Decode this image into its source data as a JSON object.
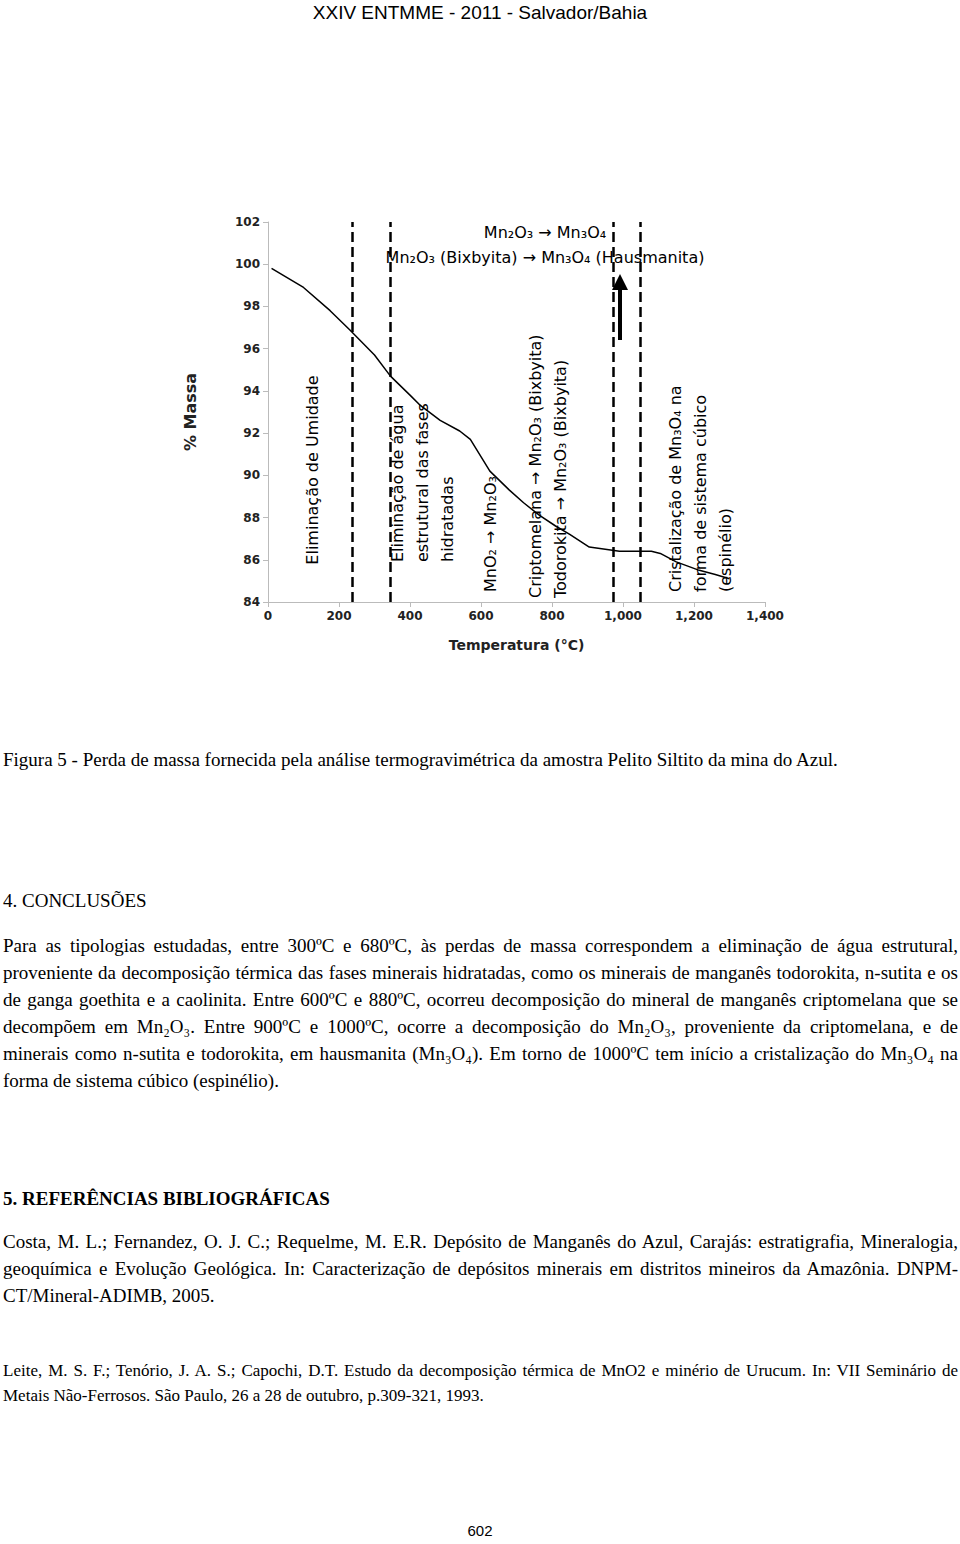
{
  "header": "XXIV ENTMME - 2011 - Salvador/Bahia",
  "chart_data": {
    "type": "line",
    "x": [
      10,
      100,
      175,
      230,
      300,
      345,
      400,
      430,
      485,
      540,
      570,
      625,
      680,
      720,
      765,
      810,
      850,
      905,
      950,
      990,
      1030,
      1080,
      1105,
      1150,
      1215,
      1260,
      1300
    ],
    "values": [
      99.8,
      98.9,
      97.8,
      96.9,
      95.7,
      94.7,
      93.8,
      93.3,
      92.6,
      92.1,
      91.7,
      90.2,
      89.3,
      88.7,
      88.1,
      87.6,
      87.2,
      86.6,
      86.5,
      86.4,
      86.4,
      86.4,
      86.3,
      85.9,
      85.5,
      85.3,
      85.1
    ],
    "color": "#000000",
    "xlabel": "Temperatura (°C)",
    "ylabel": "% Massa",
    "xlim": [
      0,
      1400
    ],
    "xticks": [
      0,
      200,
      400,
      600,
      800,
      1000,
      1200,
      1400
    ],
    "ylim": [
      84,
      102
    ],
    "yticks": [
      84,
      86,
      88,
      90,
      92,
      94,
      96,
      98,
      100,
      102
    ],
    "grid": false,
    "boundaries": [
      237,
      344,
      972,
      1048
    ],
    "annotations": [
      "Eliminação de Umidade",
      "Eliminação de água\nestrutural das fases\nhidratadas",
      "MnO₂ → Mn₂O₃",
      "Criptomelana → Mn₂O₃ (Bixbyita)\nTodorokita → Mn₂O₃ (Bixbyita)",
      "Cristalização de Mn₃O₄ na\nforma de sistema cúbico\n(espinélio)",
      "Mn₂O₃ → Mn₃O₄\nMn₂O₃ (Bixbyita) → Mn₃O₄ (Hausmanita)"
    ]
  },
  "caption": "Figura 5 - Perda de massa fornecida pela análise termogravimétrica da amostra Pelito Siltito da mina do Azul.",
  "sections": [
    {
      "title": "4. CONCLUSÕES",
      "paragraphs": [
        "Para as tipologias estudadas, entre 300ºC e 680ºC, às perdas de massa correspondem a eliminação de água estrutural, proveniente da decomposição térmica das fases minerais hidratadas, como os minerais de manganês todorokita, n-sutita e os de ganga goethita e a caolinita. Entre 600ºC e 880ºC, ocorreu decomposição do mineral de manganês criptomelana que se decompõem em Mn₂O₃. Entre 900ºC e 1000ºC, ocorre a decomposição do Mn₂O₃, proveniente da criptomelana, e de minerais como n-sutita e todorokita, em hausmanita (Mn₃O₄). Em torno de 1000ºC tem início a cristalização do Mn₃O₄ na forma de sistema cúbico (espinélio)."
      ]
    },
    {
      "title": "5. REFERÊNCIAS BIBLIOGRÁFICAS",
      "references": [
        "Costa, M. L.; Fernandez, O. J. C.; Requelme, M. E.R. Depósito de Manganês do Azul, Carajás: estratigrafia, Mineralogia, geoquímica e Evolução Geológica. In: Caracterização de depósitos minerais em distritos mineiros da Amazônia. DNPM-CT/Mineral-ADIMB, 2005.",
        "Leite, M. S. F.; Tenório, J. A. S.; Capochi, D.T. Estudo da decomposição térmica de MnO2 e minério de Urucum. In: VII Seminário de Metais Não-Ferrosos. São Paulo, 26 a 28 de outubro, p.309-321, 1993."
      ]
    }
  ],
  "page_number": "602"
}
